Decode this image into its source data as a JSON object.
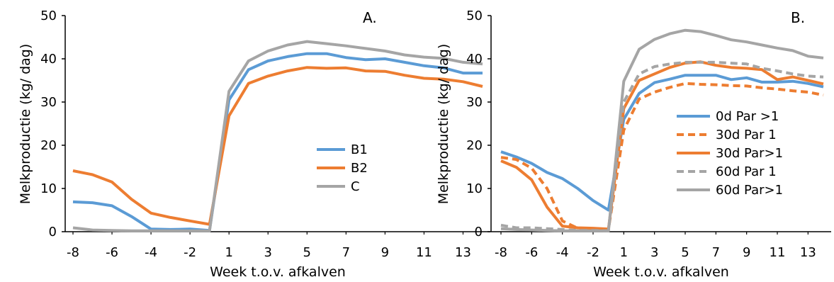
{
  "chart_data": [
    {
      "type": "line",
      "panel_letter": "A.",
      "xlabel": "Week t.o.v. afkalven",
      "ylabel": "Melkproductie (kg/ dag)",
      "ylim": [
        0,
        50
      ],
      "yticks": [
        0,
        10,
        20,
        30,
        40,
        50
      ],
      "xticks": [
        "-8",
        "-6",
        "-4",
        "-2",
        "1",
        "3",
        "5",
        "7",
        "9",
        "11",
        "13"
      ],
      "grid": false,
      "legend_position": "right-middle",
      "x": [
        "-8",
        "-7",
        "-6",
        "-5",
        "-4",
        "-3",
        "-2",
        "-1",
        "1",
        "2",
        "3",
        "4",
        "5",
        "6",
        "7",
        "8",
        "9",
        "10",
        "11",
        "12",
        "13",
        "14"
      ],
      "series": [
        {
          "name": "B1",
          "color": "#5B9BD5",
          "dash": false,
          "values": [
            6.9,
            6.7,
            6.0,
            3.5,
            0.6,
            0.5,
            0.6,
            0.3,
            30.5,
            37.5,
            39.5,
            40.5,
            41.2,
            41.2,
            40.3,
            39.8,
            40.0,
            39.2,
            38.4,
            37.9,
            36.7,
            36.7
          ]
        },
        {
          "name": "B2",
          "color": "#ED7D31",
          "dash": false,
          "values": [
            14.1,
            13.2,
            11.5,
            7.5,
            4.3,
            3.3,
            2.5,
            1.7,
            26.8,
            34.3,
            36.0,
            37.2,
            38.0,
            37.8,
            37.9,
            37.2,
            37.1,
            36.2,
            35.5,
            35.3,
            34.7,
            33.6
          ]
        },
        {
          "name": "C",
          "color": "#A5A5A5",
          "dash": false,
          "values": [
            0.9,
            0.4,
            0.3,
            0.2,
            0.2,
            0.2,
            0.2,
            0.2,
            32.5,
            39.5,
            41.8,
            43.2,
            44.0,
            43.5,
            43.0,
            42.4,
            41.8,
            40.9,
            40.4,
            40.1,
            39.2,
            38.8
          ]
        }
      ]
    },
    {
      "type": "line",
      "panel_letter": "B.",
      "xlabel": "Week t.o.v. afkalven",
      "ylabel": "Melkproductie (kg/ dag)",
      "ylim": [
        0,
        50
      ],
      "yticks": [
        0,
        10,
        20,
        30,
        40,
        50
      ],
      "xticks": [
        "-8",
        "-6",
        "-4",
        "-2",
        "1",
        "3",
        "5",
        "7",
        "9",
        "11",
        "13"
      ],
      "grid": false,
      "legend_position": "bottom-right",
      "x": [
        "-8",
        "-7",
        "-6",
        "-5",
        "-4",
        "-3",
        "-2",
        "-1",
        "1",
        "2",
        "3",
        "4",
        "5",
        "6",
        "7",
        "8",
        "9",
        "10",
        "11",
        "12",
        "13",
        "14"
      ],
      "series": [
        {
          "name": "0d Par >1",
          "color": "#5B9BD5",
          "dash": false,
          "values": [
            18.5,
            17.3,
            15.8,
            13.7,
            12.3,
            10.0,
            7.2,
            5.0,
            26.0,
            32.0,
            34.5,
            35.3,
            36.2,
            36.2,
            36.2,
            35.2,
            35.6,
            34.6,
            34.6,
            34.8,
            34.3,
            33.5
          ]
        },
        {
          "name": "30d Par 1",
          "color": "#ED7D31",
          "dash": true,
          "values": [
            17.2,
            16.7,
            14.7,
            10.0,
            2.5,
            0.8,
            0.6,
            0.5,
            23.5,
            30.7,
            32.3,
            33.4,
            34.3,
            34.1,
            34.0,
            33.8,
            33.7,
            33.3,
            33.0,
            32.6,
            32.3,
            31.6
          ]
        },
        {
          "name": "30d Par>1",
          "color": "#ED7D31",
          "dash": false,
          "values": [
            16.4,
            14.9,
            12.0,
            5.7,
            1.3,
            0.9,
            0.8,
            0.6,
            28.5,
            35.0,
            36.5,
            38.0,
            39.0,
            39.3,
            38.5,
            38.0,
            37.8,
            37.5,
            35.2,
            35.8,
            35.0,
            34.2
          ]
        },
        {
          "name": "60d Par 1",
          "color": "#A5A5A5",
          "dash": true,
          "values": [
            1.5,
            0.9,
            0.9,
            0.7,
            0.5,
            0.3,
            0.3,
            0.2,
            30.0,
            36.5,
            38.2,
            38.8,
            39.2,
            39.2,
            39.2,
            39.0,
            38.8,
            37.8,
            37.2,
            36.5,
            36.0,
            35.8
          ]
        },
        {
          "name": "60d Par>1",
          "color": "#A5A5A5",
          "dash": false,
          "values": [
            0.7,
            0.5,
            0.4,
            0.3,
            0.2,
            0.2,
            0.2,
            0.2,
            34.8,
            42.2,
            44.5,
            45.8,
            46.6,
            46.3,
            45.4,
            44.4,
            43.9,
            43.2,
            42.5,
            41.9,
            40.6,
            40.2
          ]
        }
      ]
    }
  ]
}
